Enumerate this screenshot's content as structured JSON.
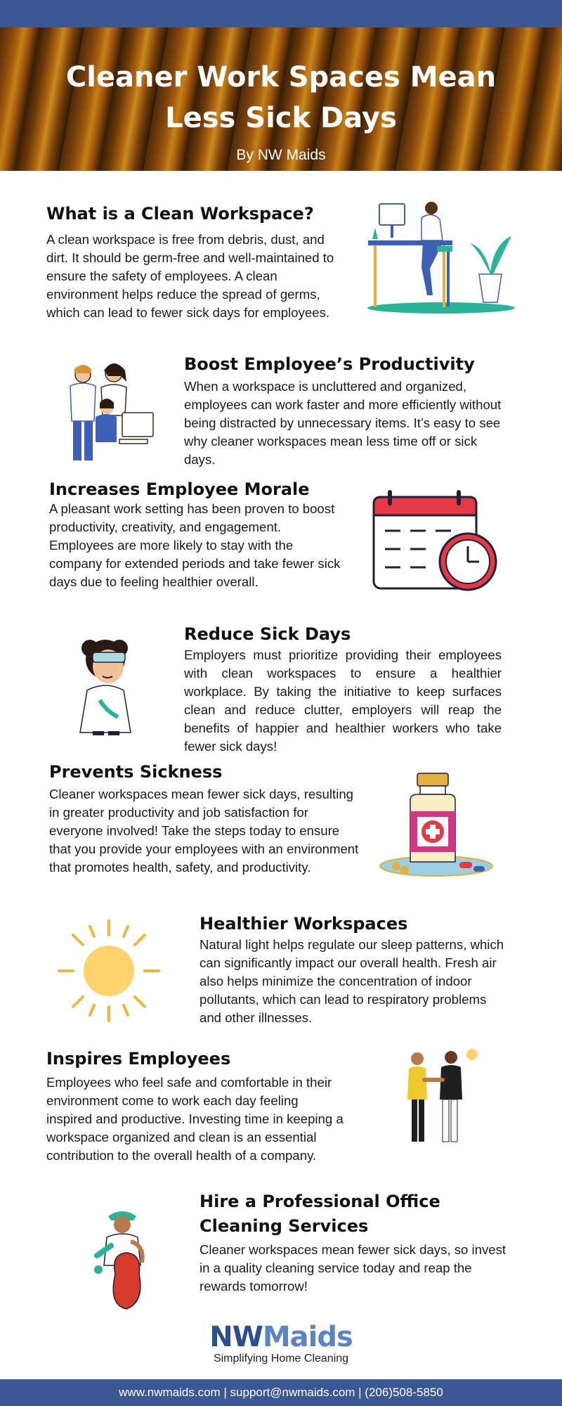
{
  "hero": {
    "title": "Cleaner Work Spaces Mean Less Sick Days",
    "byline": "By NW Maids"
  },
  "sections": [
    {
      "heading": "What is a Clean Workspace?",
      "body": "A clean workspace is free from debris, dust, and dirt. It should be germ-free and well-maintained to ensure the safety of employees. A clean environment helps reduce the spread of germs, which can lead to fewer sick days for employees.",
      "illustration": "woman-at-desk"
    },
    {
      "heading": "Boost Employee’s Productivity",
      "body": "When a workspace is uncluttered and organized, employees can work faster and more efficiently without being distracted by unnecessary items. It’s easy to see why cleaner workspaces mean less time off or sick days.",
      "illustration": "team-at-computer"
    },
    {
      "heading": "Increases Employee Morale",
      "body": "A pleasant work setting has been proven to boost productivity, creativity, and engagement. Employees are more likely to stay with the company for extended periods and take fewer sick days due to feeling healthier overall.",
      "illustration": "calendar-clock-icon"
    },
    {
      "heading": "Reduce Sick Days",
      "body": "Employers must prioritize providing their employees with clean workspaces to ensure a healthier workplace. By taking the initiative to keep surfaces clean and reduce clutter, employers will reap the benefits of happier and healthier workers who take fewer sick days!",
      "illustration": "sick-person"
    },
    {
      "heading": "Prevents Sickness",
      "body": "Cleaner workspaces mean fewer sick days, resulting in greater productivity and job satisfaction for everyone involved! Take the steps today to ensure that you provide your employees with an environment that promotes health, safety, and productivity.",
      "illustration": "medicine-bottle"
    },
    {
      "heading": "Healthier Workspaces",
      "body": "Natural light helps regulate our sleep patterns, which can significantly impact our overall health. Fresh air also helps minimize the concentration of indoor pollutants, which can lead to respiratory problems and other illnesses.",
      "illustration": "sun-icon"
    },
    {
      "heading": "Inspires Employees",
      "body": "Employees who feel safe and comfortable in their environment come to work each day feeling inspired and productive. Investing time in keeping a workspace organized and clean is an essential contribution to the overall health of a company.",
      "illustration": "handshake"
    },
    {
      "heading": "Hire a Professional Office Cleaning Services",
      "body": "Cleaner workspaces mean fewer sick days, so invest in a quality cleaning service today and reap the rewards tomorrow!",
      "illustration": "cleaner-with-bag"
    }
  ],
  "logo": {
    "nw": "NW",
    "maids": "Maids",
    "tagline": "Simplifying Home Cleaning"
  },
  "footer": {
    "contact": "www.nwmaids.com | support@nwmaids.com | (206)508-5850"
  },
  "colors": {
    "bar": "#3c5894",
    "logo_dark": "#2c4e8f",
    "logo_light": "#5a84c4"
  }
}
